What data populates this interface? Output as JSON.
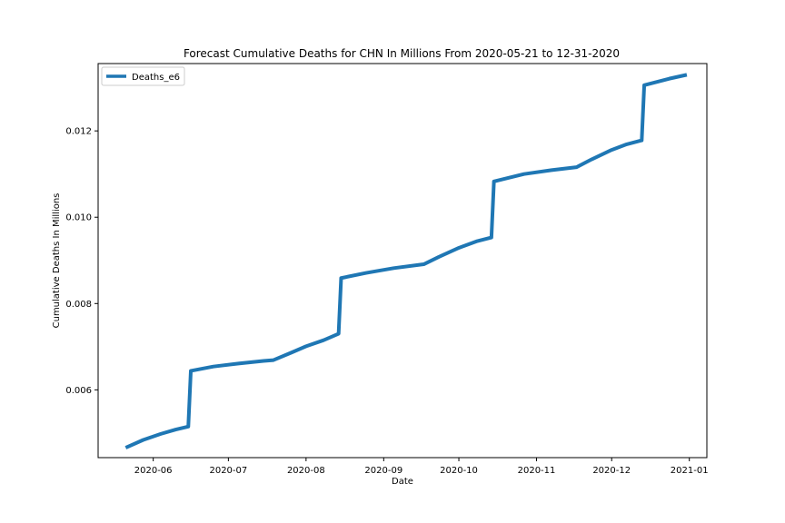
{
  "chart_data": {
    "type": "line",
    "title": "Forecast Cumulative Deaths for CHN In Millions From 2020-05-21 to 12-31-2020",
    "xlabel": "Date",
    "ylabel": "Cumulative Deaths In Millions",
    "xlim": [
      "2020-05-10",
      "2021-01-08"
    ],
    "ylim": [
      0.00443,
      0.01356
    ],
    "x_ticks": [
      "2020-06-01",
      "2020-07-01",
      "2020-08-01",
      "2020-09-01",
      "2020-10-01",
      "2020-11-01",
      "2020-12-01",
      "2021-01-01"
    ],
    "x_tick_labels": [
      "2020-06",
      "2020-07",
      "2020-08",
      "2020-09",
      "2020-10",
      "2020-11",
      "2020-12",
      "2021-01"
    ],
    "y_ticks": [
      0.006,
      0.008,
      0.01,
      0.012
    ],
    "y_tick_labels": [
      "0.006",
      "0.008",
      "0.010",
      "0.012"
    ],
    "grid": false,
    "legend_position": "top-left",
    "series": [
      {
        "name": "Deaths_e6",
        "color": "#1f77b4",
        "points": [
          [
            "2020-05-21",
            0.00466
          ],
          [
            "2020-05-28",
            0.00484
          ],
          [
            "2020-06-04",
            0.00498
          ],
          [
            "2020-06-10",
            0.00508
          ],
          [
            "2020-06-15",
            0.00515
          ],
          [
            "2020-06-16",
            0.00644
          ],
          [
            "2020-06-25",
            0.00654
          ],
          [
            "2020-07-05",
            0.00661
          ],
          [
            "2020-07-15",
            0.00667
          ],
          [
            "2020-07-19",
            0.00669
          ],
          [
            "2020-07-26",
            0.00686
          ],
          [
            "2020-08-01",
            0.00701
          ],
          [
            "2020-08-08",
            0.00715
          ],
          [
            "2020-08-14",
            0.0073
          ],
          [
            "2020-08-15",
            0.00859
          ],
          [
            "2020-08-25",
            0.00871
          ],
          [
            "2020-09-05",
            0.00882
          ],
          [
            "2020-09-17",
            0.00891
          ],
          [
            "2020-09-23",
            0.00908
          ],
          [
            "2020-10-01",
            0.00929
          ],
          [
            "2020-10-08",
            0.00944
          ],
          [
            "2020-10-14",
            0.00953
          ],
          [
            "2020-10-15",
            0.01083
          ],
          [
            "2020-10-27",
            0.011
          ],
          [
            "2020-11-07",
            0.01109
          ],
          [
            "2020-11-17",
            0.01116
          ],
          [
            "2020-11-23",
            0.01134
          ],
          [
            "2020-12-01",
            0.01156
          ],
          [
            "2020-12-07",
            0.01169
          ],
          [
            "2020-12-13",
            0.01178
          ],
          [
            "2020-12-14",
            0.01306
          ],
          [
            "2020-12-24",
            0.01321
          ],
          [
            "2020-12-31",
            0.0133
          ]
        ]
      }
    ]
  }
}
